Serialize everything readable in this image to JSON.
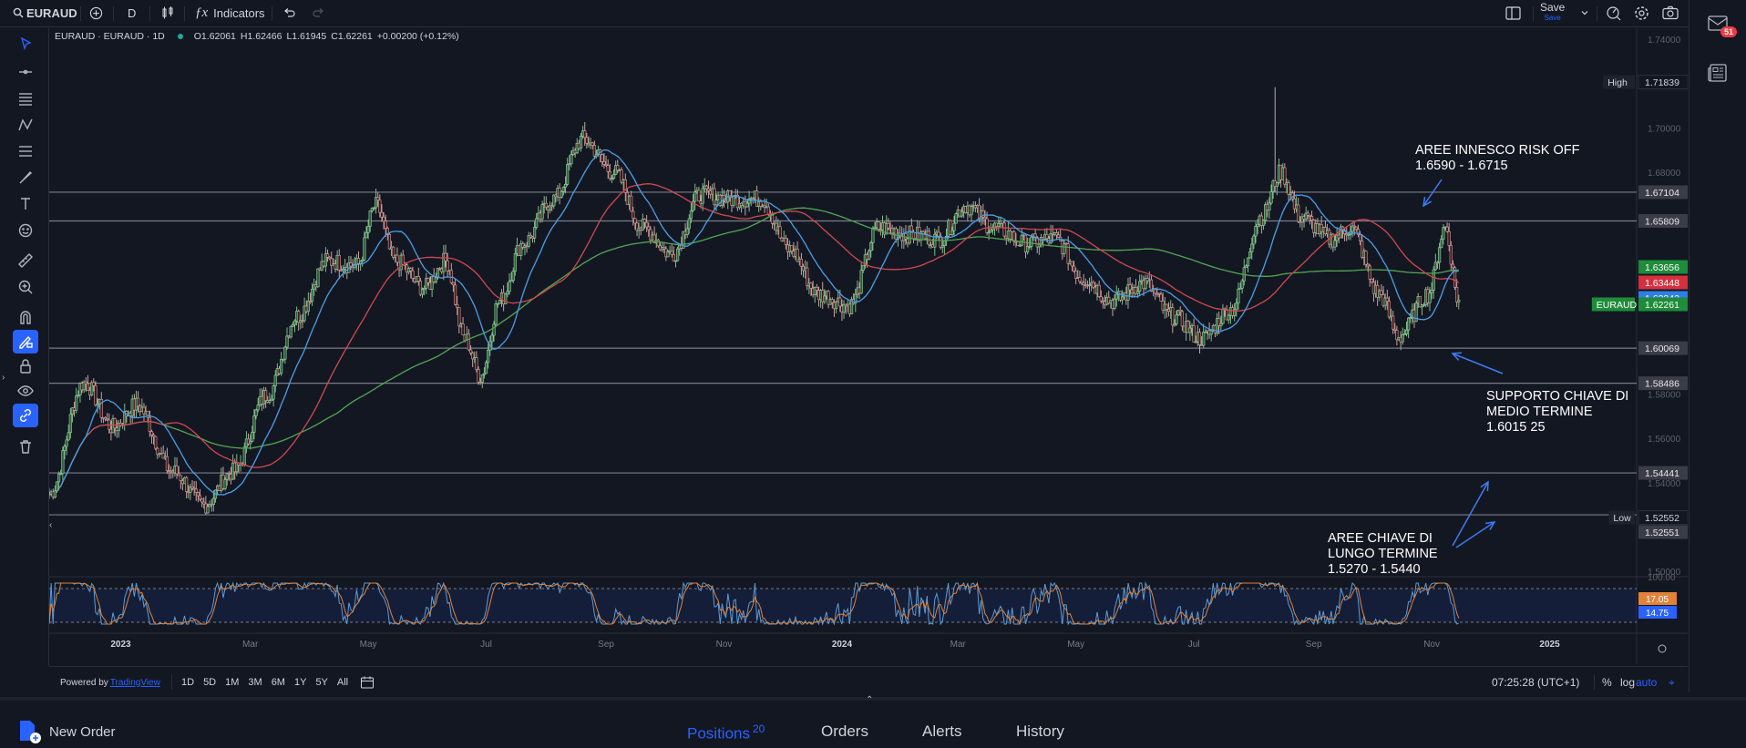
{
  "toolbar": {
    "symbol": "EURAUD",
    "timeframe": "D",
    "indicators_label": "Indicators",
    "save_label": "Save",
    "save_sub": "Save"
  },
  "legend": {
    "title": "EURAUD · EURAUD · 1D",
    "open": "O1.62061",
    "high": "H1.62466",
    "low": "L1.61945",
    "close": "C1.62261",
    "change": "+0.00200 (+0.12%)"
  },
  "price_axis": {
    "ticks": [
      "1.74000",
      "1.70000",
      "1.68000",
      "1.60000",
      "1.58000",
      "1.56000",
      "1.54000",
      "1.50000"
    ],
    "labels": [
      {
        "text": "1.71839",
        "tag": "High",
        "kind": "hl"
      },
      {
        "text": "1.67104",
        "kind": "gray"
      },
      {
        "text": "1.65809",
        "kind": "gray"
      },
      {
        "text": "1.63656",
        "kind": "green"
      },
      {
        "text": "1.63448",
        "kind": "red"
      },
      {
        "text": "1.63243",
        "kind": "blue"
      },
      {
        "text": "1.62261",
        "tag": "EURAUD",
        "kind": "cur"
      },
      {
        "text": "1.60069",
        "kind": "gray"
      },
      {
        "text": "1.58486",
        "kind": "gray"
      },
      {
        "text": "1.54441",
        "kind": "gray"
      },
      {
        "text": "1.52552",
        "tag": "Low",
        "kind": "hl"
      },
      {
        "text": "1.52551",
        "kind": "gray"
      }
    ]
  },
  "osc_axis": {
    "top": "100.00",
    "v1": "17.05",
    "v2": "14.75"
  },
  "time_axis": [
    "2023",
    "Mar",
    "May",
    "Jul",
    "Sep",
    "Nov",
    "2024",
    "Mar",
    "May",
    "Jul",
    "Sep",
    "Nov",
    "2025"
  ],
  "annotations": {
    "risk_off_title": "AREE INNESCO RISK OFF",
    "risk_off_range": "1.6590 - 1.6715",
    "support_1": "SUPPORTO CHIAVE DI",
    "support_2": "MEDIO TERMINE",
    "support_3": "1.6015 25",
    "long_1": "AREE CHIAVE DI",
    "long_2": "LUNGO TERMINE",
    "long_3": "1.5270  - 1.5440"
  },
  "bottom": {
    "powered": "Powered by",
    "tv": "TradingView",
    "ranges": [
      "1D",
      "5D",
      "1M",
      "3M",
      "6M",
      "1Y",
      "5Y",
      "All"
    ],
    "clock": "07:25:28 (UTC+1)",
    "pct": "%",
    "log": "log",
    "auto": "auto"
  },
  "panel": {
    "new_order": "New Order",
    "positions": "Positions",
    "positions_count": "20",
    "orders": "Orders",
    "alerts": "Alerts",
    "history": "History"
  },
  "notifications": {
    "count": "51"
  },
  "colors": {
    "bg": "#131722",
    "up": "#26a69a",
    "down": "#ef5350",
    "blue": "#2962ff",
    "ma_blue": "#4a9fe8",
    "ma_red": "#d0494f",
    "ma_green": "#53a653",
    "stoch_k": "#5b9bd5",
    "stoch_d": "#e0823a"
  },
  "chart_data": {
    "type": "candlestick",
    "symbol": "EURAUD",
    "interval": "1D",
    "ohlc_last": {
      "open": 1.62061,
      "high": 1.62466,
      "low": 1.61945,
      "close": 1.62261
    },
    "highest": 1.71839,
    "lowest": 1.52552,
    "horizontal_levels": [
      1.67104,
      1.65809,
      1.60069,
      1.58486,
      1.54441,
      1.52551
    ],
    "moving_averages": [
      {
        "color": "green",
        "value": 1.63656
      },
      {
        "color": "red",
        "value": 1.63448
      },
      {
        "color": "blue",
        "value": 1.63243
      }
    ],
    "close_path": [
      {
        "x": "2022-11-17",
        "y": 1.535
      },
      {
        "x": "2022-12-05",
        "y": 1.585
      },
      {
        "x": "2022-12-20",
        "y": 1.565
      },
      {
        "x": "2023-01-01",
        "y": 1.575
      },
      {
        "x": "2023-01-20",
        "y": 1.545
      },
      {
        "x": "2023-02-05",
        "y": 1.53
      },
      {
        "x": "2023-02-20",
        "y": 1.545
      },
      {
        "x": "2023-03-10",
        "y": 1.58
      },
      {
        "x": "2023-03-25",
        "y": 1.615
      },
      {
        "x": "2023-04-10",
        "y": 1.64
      },
      {
        "x": "2023-04-25",
        "y": 1.638
      },
      {
        "x": "2023-05-05",
        "y": 1.665
      },
      {
        "x": "2023-05-15",
        "y": 1.64
      },
      {
        "x": "2023-05-30",
        "y": 1.628
      },
      {
        "x": "2023-06-10",
        "y": 1.64
      },
      {
        "x": "2023-06-20",
        "y": 1.605
      },
      {
        "x": "2023-06-28",
        "y": 1.588
      },
      {
        "x": "2023-07-08",
        "y": 1.622
      },
      {
        "x": "2023-07-20",
        "y": 1.648
      },
      {
        "x": "2023-08-05",
        "y": 1.668
      },
      {
        "x": "2023-08-20",
        "y": 1.695
      },
      {
        "x": "2023-09-05",
        "y": 1.68
      },
      {
        "x": "2023-09-20",
        "y": 1.655
      },
      {
        "x": "2023-10-05",
        "y": 1.643
      },
      {
        "x": "2023-10-20",
        "y": 1.67
      },
      {
        "x": "2023-11-05",
        "y": 1.668
      },
      {
        "x": "2023-11-20",
        "y": 1.668
      },
      {
        "x": "2023-12-05",
        "y": 1.645
      },
      {
        "x": "2023-12-20",
        "y": 1.625
      },
      {
        "x": "2024-01-05",
        "y": 1.62
      },
      {
        "x": "2024-01-20",
        "y": 1.655
      },
      {
        "x": "2024-02-05",
        "y": 1.652
      },
      {
        "x": "2024-02-20",
        "y": 1.65
      },
      {
        "x": "2024-03-05",
        "y": 1.665
      },
      {
        "x": "2024-03-20",
        "y": 1.655
      },
      {
        "x": "2024-04-05",
        "y": 1.648
      },
      {
        "x": "2024-04-20",
        "y": 1.65
      },
      {
        "x": "2024-05-05",
        "y": 1.632
      },
      {
        "x": "2024-05-20",
        "y": 1.622
      },
      {
        "x": "2024-06-05",
        "y": 1.63
      },
      {
        "x": "2024-06-20",
        "y": 1.615
      },
      {
        "x": "2024-07-05",
        "y": 1.605
      },
      {
        "x": "2024-07-20",
        "y": 1.618
      },
      {
        "x": "2024-08-05",
        "y": 1.66
      },
      {
        "x": "2024-08-15",
        "y": 1.68
      },
      {
        "x": "2024-08-25",
        "y": 1.66
      },
      {
        "x": "2024-09-10",
        "y": 1.65
      },
      {
        "x": "2024-09-20",
        "y": 1.655
      },
      {
        "x": "2024-10-05",
        "y": 1.625
      },
      {
        "x": "2024-10-15",
        "y": 1.606
      },
      {
        "x": "2024-10-30",
        "y": 1.625
      },
      {
        "x": "2024-11-08",
        "y": 1.655
      },
      {
        "x": "2024-11-15",
        "y": 1.622
      }
    ],
    "x_range": [
      "2022-11-17",
      "2025-02-15"
    ],
    "ylim": [
      1.498,
      1.745
    ]
  }
}
